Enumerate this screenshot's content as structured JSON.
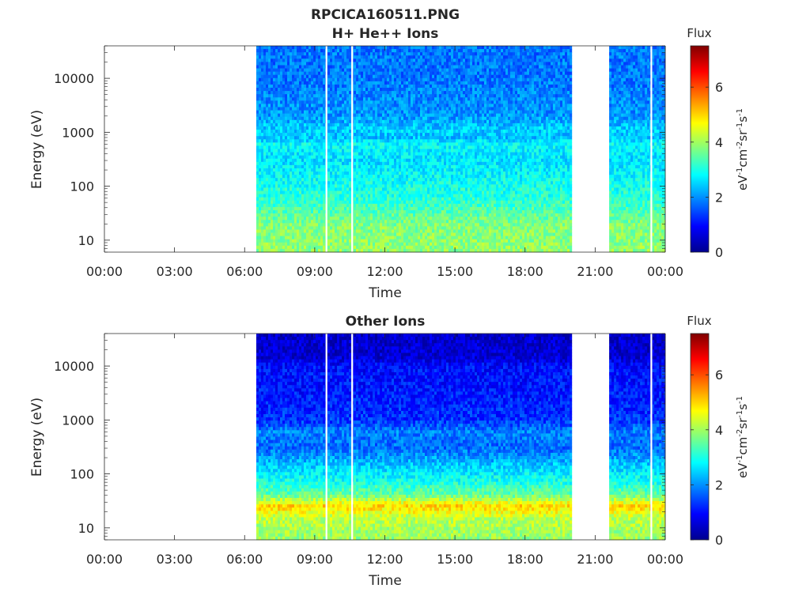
{
  "figure": {
    "title": "RPCICA160511.PNG"
  },
  "colorbar": {
    "label": "Flux",
    "unit_label_parts": [
      "eV",
      "-1",
      "cm",
      "-2",
      "sr",
      "-1",
      "s",
      "-1"
    ],
    "ticks": [
      "0",
      "2",
      "4",
      "6"
    ],
    "colormap": [
      "#00008f",
      "#0000ff",
      "#0080ff",
      "#00ffff",
      "#80ff80",
      "#ffff00",
      "#ff8000",
      "#ff0000",
      "#800000"
    ]
  },
  "chart_data": [
    {
      "type": "heatmap",
      "title": "H+ He++ Ions",
      "xlabel": "Time",
      "ylabel": "Energy (eV)",
      "xticks": [
        "00:00",
        "03:00",
        "06:00",
        "09:00",
        "12:00",
        "15:00",
        "18:00",
        "21:00",
        "00:00"
      ],
      "yticks": [
        "10",
        "100",
        "1000",
        "10000"
      ],
      "ytick_values": [
        10,
        100,
        1000,
        10000
      ],
      "yscale": "log",
      "ylim": [
        6,
        40000
      ],
      "xlim_hours": [
        0,
        24
      ],
      "clim": [
        0,
        7.5
      ],
      "data_intervals_hours": [
        [
          6.5,
          20.0
        ],
        [
          21.6,
          24.0
        ]
      ],
      "gap_lines_hours": [
        9.5,
        10.6,
        23.4
      ],
      "flux_profile": [
        {
          "energy": 6,
          "flux": 3.9
        },
        {
          "energy": 15,
          "flux": 3.8
        },
        {
          "energy": 22,
          "flux": 3.7
        },
        {
          "energy": 35,
          "flux": 3.4
        },
        {
          "energy": 60,
          "flux": 3.1
        },
        {
          "energy": 120,
          "flux": 2.9
        },
        {
          "energy": 300,
          "flux": 2.6
        },
        {
          "energy": 600,
          "flux": 2.8
        },
        {
          "energy": 800,
          "flux": 2.35
        },
        {
          "energy": 1100,
          "flux": 2.5
        },
        {
          "energy": 2000,
          "flux": 2.05
        },
        {
          "energy": 5000,
          "flux": 1.9
        },
        {
          "energy": 10000,
          "flux": 1.8
        },
        {
          "energy": 40000,
          "flux": 1.8
        }
      ]
    },
    {
      "type": "heatmap",
      "title": "Other Ions",
      "xlabel": "Time",
      "ylabel": "Energy (eV)",
      "xticks": [
        "00:00",
        "03:00",
        "06:00",
        "09:00",
        "12:00",
        "15:00",
        "18:00",
        "21:00",
        "00:00"
      ],
      "yticks": [
        "10",
        "100",
        "1000",
        "10000"
      ],
      "ytick_values": [
        10,
        100,
        1000,
        10000
      ],
      "yscale": "log",
      "ylim": [
        6,
        40000
      ],
      "xlim_hours": [
        0,
        24
      ],
      "clim": [
        0,
        7.5
      ],
      "data_intervals_hours": [
        [
          6.5,
          20.0
        ],
        [
          21.6,
          24.0
        ]
      ],
      "gap_lines_hours": [
        9.5,
        10.6,
        23.4
      ],
      "flux_profile": [
        {
          "energy": 6,
          "flux": 3.9
        },
        {
          "energy": 15,
          "flux": 4.2
        },
        {
          "energy": 25,
          "flux": 5.0
        },
        {
          "energy": 40,
          "flux": 3.6
        },
        {
          "energy": 70,
          "flux": 3.0
        },
        {
          "energy": 150,
          "flux": 2.4
        },
        {
          "energy": 300,
          "flux": 1.7
        },
        {
          "energy": 600,
          "flux": 1.9
        },
        {
          "energy": 1000,
          "flux": 1.3
        },
        {
          "energy": 3000,
          "flux": 1.1
        },
        {
          "energy": 10000,
          "flux": 1.0
        },
        {
          "energy": 14000,
          "flux": 0.6
        },
        {
          "energy": 40000,
          "flux": 0.5
        }
      ]
    }
  ]
}
